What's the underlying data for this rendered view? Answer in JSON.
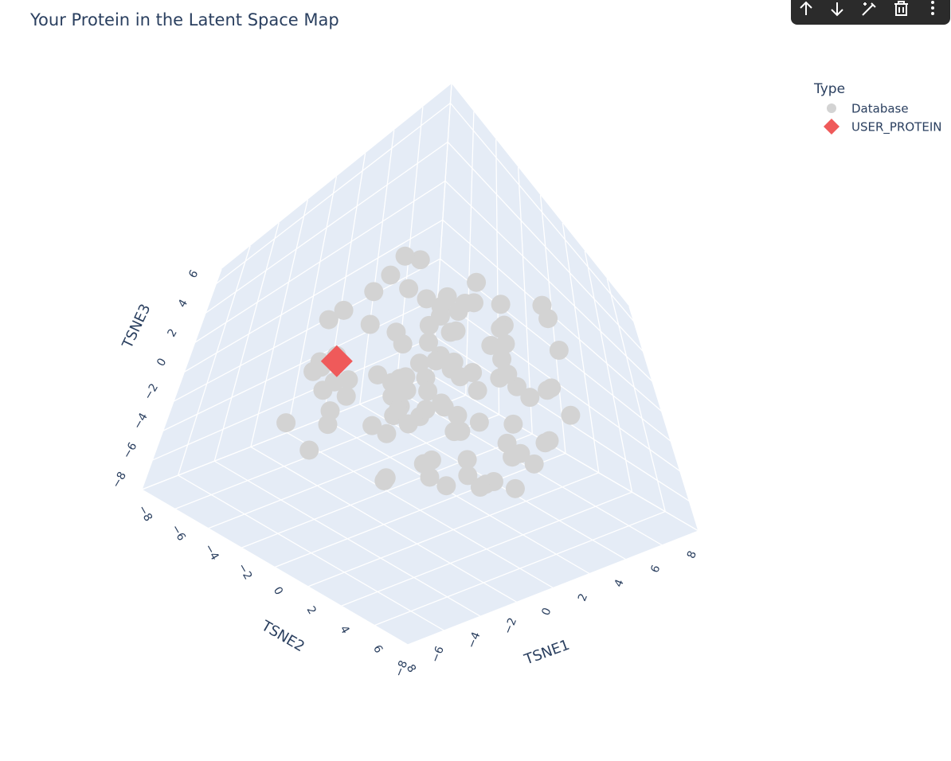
{
  "chart_data": {
    "type": "scatter3d",
    "title": "Your Protein in the Latent Space Map",
    "legend_title": "Type",
    "xaxis_title": "TSNE1",
    "yaxis_title": "TSNE2",
    "zaxis_title": "TSNE3",
    "xlim": [
      -8,
      8
    ],
    "ylim": [
      -8,
      8
    ],
    "zlim": [
      -8,
      7
    ],
    "xticks": [
      {
        "value": -8,
        "label": "−8"
      },
      {
        "value": -6,
        "label": "−6"
      },
      {
        "value": -4,
        "label": "−4"
      },
      {
        "value": -2,
        "label": "−2"
      },
      0,
      2,
      4,
      6,
      8
    ],
    "yticks": [
      {
        "value": -8,
        "label": "−8"
      },
      {
        "value": -6,
        "label": "−6"
      },
      {
        "value": -4,
        "label": "−4"
      },
      {
        "value": -2,
        "label": "−2"
      },
      0,
      2,
      4,
      6,
      8
    ],
    "zticks": [
      {
        "value": -8,
        "label": "−8"
      },
      {
        "value": -6,
        "label": "−6"
      },
      {
        "value": -4,
        "label": "−4"
      },
      {
        "value": -2,
        "label": "−2"
      },
      0,
      2,
      4,
      6
    ],
    "series": [
      {
        "name": "Database",
        "color": "#d3d3d3",
        "symbol": "circle",
        "x": [
          -5,
          -4,
          -3,
          -2,
          -1,
          0,
          1,
          2,
          3,
          4,
          5,
          6,
          -4.5,
          -3.5,
          -2.5,
          -1.5,
          -0.5,
          0.5,
          1.5,
          2.5,
          3.5,
          4.5,
          5.5,
          -6,
          -5,
          -3,
          -1,
          1,
          3,
          5,
          -2,
          0,
          2,
          4,
          6,
          -4,
          -1,
          1,
          3,
          -3,
          0,
          2,
          -2,
          4,
          -4,
          1,
          -1,
          3,
          -3,
          5,
          6.5,
          7,
          -5.5,
          -6,
          2,
          0,
          -2,
          4,
          -4,
          1,
          1,
          -1,
          3,
          -3,
          0,
          2,
          -2,
          4,
          -5,
          6,
          0.5,
          -0.5,
          2.5,
          -2.5,
          4.5,
          -4.5,
          1.5,
          -1.5,
          3.5,
          -3.5,
          0,
          1,
          2,
          3,
          -1,
          -2,
          -3,
          4,
          5,
          -4,
          6,
          -6,
          2,
          -2,
          0,
          3,
          -3,
          1,
          -1,
          4
        ],
        "y": [
          3,
          -2,
          5,
          0,
          -4,
          2,
          -1,
          4,
          -3,
          1,
          0,
          2,
          -3,
          4,
          1,
          -5,
          3,
          -2,
          5,
          -1,
          2,
          -4,
          1,
          3,
          -1,
          5,
          -3,
          0,
          4,
          -2,
          -5,
          6,
          0,
          -2,
          3,
          1,
          -4,
          5,
          2,
          -3,
          4,
          -1,
          2,
          -3,
          5,
          0,
          6,
          -4,
          1,
          3,
          -2,
          1,
          4,
          -1,
          -5,
          3,
          0,
          2,
          -3,
          5,
          1,
          -3,
          0,
          2,
          4,
          -2,
          5,
          -1,
          3,
          -4,
          6,
          -1,
          3,
          1,
          -3,
          4,
          -2,
          0,
          2,
          -5,
          0,
          3,
          -2,
          5,
          2,
          -4,
          1,
          4,
          -1,
          -3,
          2,
          0,
          -2,
          1,
          3,
          -1,
          4,
          -3,
          5,
          6
        ],
        "z": [
          1,
          -2,
          3,
          0,
          -3,
          2,
          -1,
          4,
          -4,
          0,
          -2,
          3,
          1,
          -1,
          2,
          -3,
          0,
          4,
          -2,
          1,
          3,
          -1,
          -3,
          2,
          0,
          -2,
          4,
          1,
          -4,
          2,
          -1,
          0,
          2,
          -3,
          1,
          3,
          -2,
          -4,
          0,
          4,
          2,
          -3,
          0,
          1,
          -1,
          4,
          -2,
          3,
          -4,
          -1,
          0,
          1,
          3,
          -2,
          2,
          -3,
          4,
          -1,
          1,
          -2,
          -3,
          2,
          -1,
          3,
          0,
          -4,
          1,
          2,
          -2,
          -1,
          1,
          -2,
          4,
          0,
          -3,
          2,
          -1,
          3,
          0,
          -4,
          5,
          -5,
          1,
          -2,
          3,
          0,
          2,
          -3,
          -1,
          4,
          -2,
          3,
          0,
          1,
          -4,
          2,
          -1,
          5,
          -3,
          0
        ]
      },
      {
        "name": "USER_PROTEIN",
        "color": "#ef5a5a",
        "symbol": "diamond",
        "x": [
          -4
        ],
        "y": [
          -2
        ],
        "z": [
          2
        ]
      }
    ]
  }
}
